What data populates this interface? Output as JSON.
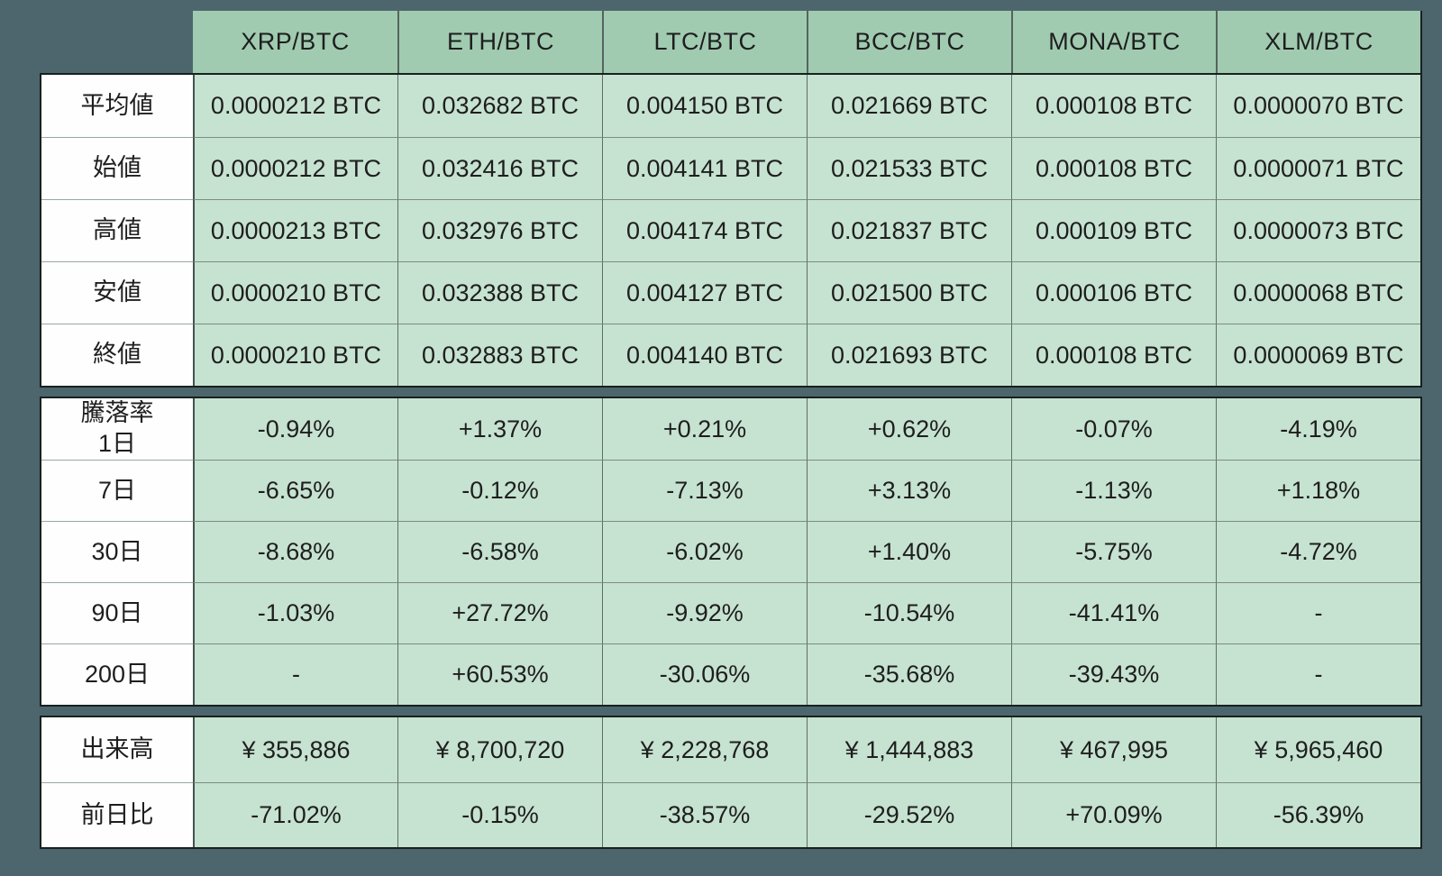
{
  "chart_data": {
    "type": "table",
    "columns": [
      "XRP/BTC",
      "ETH/BTC",
      "LTC/BTC",
      "BCC/BTC",
      "MONA/BTC",
      "XLM/BTC"
    ],
    "sections": [
      {
        "name": "price-stats",
        "rows": [
          {
            "label": "平均値",
            "values": [
              "0.0000212 BTC",
              "0.032682 BTC",
              "0.004150 BTC",
              "0.021669 BTC",
              "0.000108 BTC",
              "0.0000070 BTC"
            ]
          },
          {
            "label": "始値",
            "values": [
              "0.0000212 BTC",
              "0.032416 BTC",
              "0.004141 BTC",
              "0.021533 BTC",
              "0.000108 BTC",
              "0.0000071 BTC"
            ]
          },
          {
            "label": "高値",
            "values": [
              "0.0000213 BTC",
              "0.032976 BTC",
              "0.004174 BTC",
              "0.021837 BTC",
              "0.000109 BTC",
              "0.0000073 BTC"
            ]
          },
          {
            "label": "安値",
            "values": [
              "0.0000210 BTC",
              "0.032388 BTC",
              "0.004127 BTC",
              "0.021500 BTC",
              "0.000106 BTC",
              "0.0000068 BTC"
            ]
          },
          {
            "label": "終値",
            "values": [
              "0.0000210 BTC",
              "0.032883 BTC",
              "0.004140 BTC",
              "0.021693 BTC",
              "0.000108 BTC",
              "0.0000069 BTC"
            ]
          }
        ]
      },
      {
        "name": "change-rates",
        "rows": [
          {
            "label": "騰落率\n1日",
            "values": [
              "-0.94%",
              "+1.37%",
              "+0.21%",
              "+0.62%",
              "-0.07%",
              "-4.19%"
            ]
          },
          {
            "label": "7日",
            "values": [
              "-6.65%",
              "-0.12%",
              "-7.13%",
              "+3.13%",
              "-1.13%",
              "+1.18%"
            ]
          },
          {
            "label": "30日",
            "values": [
              "-8.68%",
              "-6.58%",
              "-6.02%",
              "+1.40%",
              "-5.75%",
              "-4.72%"
            ]
          },
          {
            "label": "90日",
            "values": [
              "-1.03%",
              "+27.72%",
              "-9.92%",
              "-10.54%",
              "-41.41%",
              "-"
            ]
          },
          {
            "label": "200日",
            "values": [
              "-",
              "+60.53%",
              "-30.06%",
              "-35.68%",
              "-39.43%",
              "-"
            ]
          }
        ]
      },
      {
        "name": "volume-stats",
        "rows": [
          {
            "label": "出来高",
            "values": [
              "¥ 355,886",
              "¥ 8,700,720",
              "¥ 2,228,768",
              "¥ 1,444,883",
              "¥ 467,995",
              "¥ 5,965,460"
            ]
          },
          {
            "label": "前日比",
            "values": [
              "-71.02%",
              "-0.15%",
              "-38.57%",
              "-29.52%",
              "+70.09%",
              "-56.39%"
            ]
          }
        ]
      }
    ],
    "layout": {
      "legend": "none",
      "grid": "on"
    }
  },
  "colors": {
    "background": "#4d666d",
    "header_green": "#a0cbb1",
    "cell_green": "#c6e2d0",
    "label_white": "#fefefe",
    "outer_border": "#17211f",
    "column_divider": "#5e6f69",
    "row_divider": "#7b8c84",
    "text": "#1e1e1e"
  }
}
